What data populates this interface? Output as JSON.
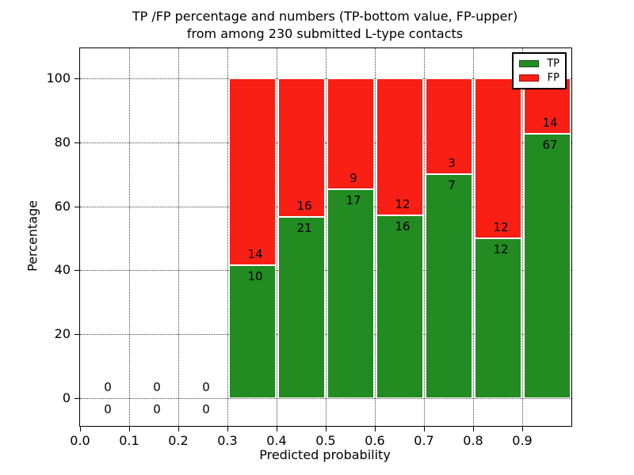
{
  "chart_data": {
    "type": "bar",
    "stacked": true,
    "title_line1": "TP /FP percentage and numbers (TP-bottom value, FP-upper)",
    "title_line2": "from among 230 submitted L-type contacts",
    "xlabel": "Predicted probability",
    "ylabel": "Percentage",
    "xlim": [
      0.0,
      1.0
    ],
    "ylim": [
      -8.7,
      109.4
    ],
    "x_tick_labels": [
      "0.0",
      "0.1",
      "0.2",
      "0.3",
      "0.4",
      "0.5",
      "0.6",
      "0.7",
      "0.8",
      "0.9"
    ],
    "y_tick_labels": [
      "0",
      "20",
      "40",
      "60",
      "80",
      "100"
    ],
    "grid": true,
    "grid_style": "dotted",
    "total_contacts": 230,
    "colors": {
      "tp": "#228b22",
      "fp": "#fa1f15"
    },
    "legend": {
      "position": "upper right",
      "entries": [
        {
          "label": "TP",
          "color": "#228b22"
        },
        {
          "label": "FP",
          "color": "#fa1f15"
        }
      ]
    },
    "bins": [
      {
        "x_start": 0.0,
        "x_end": 0.1,
        "tp": 0,
        "fp": 0,
        "tp_pct": null
      },
      {
        "x_start": 0.1,
        "x_end": 0.2,
        "tp": 0,
        "fp": 0,
        "tp_pct": null
      },
      {
        "x_start": 0.2,
        "x_end": 0.3,
        "tp": 0,
        "fp": 0,
        "tp_pct": null
      },
      {
        "x_start": 0.3,
        "x_end": 0.4,
        "tp": 10,
        "fp": 14,
        "tp_pct": 41.7
      },
      {
        "x_start": 0.4,
        "x_end": 0.5,
        "tp": 21,
        "fp": 16,
        "tp_pct": 56.8
      },
      {
        "x_start": 0.5,
        "x_end": 0.6,
        "tp": 17,
        "fp": 9,
        "tp_pct": 65.4
      },
      {
        "x_start": 0.6,
        "x_end": 0.7,
        "tp": 16,
        "fp": 12,
        "tp_pct": 57.1
      },
      {
        "x_start": 0.7,
        "x_end": 0.8,
        "tp": 7,
        "fp": 3,
        "tp_pct": 70.0
      },
      {
        "x_start": 0.8,
        "x_end": 0.9,
        "tp": 12,
        "fp": 12,
        "tp_pct": 50.0
      },
      {
        "x_start": 0.9,
        "x_end": 1.0,
        "tp": 67,
        "fp": 14,
        "tp_pct": 82.7
      }
    ]
  }
}
